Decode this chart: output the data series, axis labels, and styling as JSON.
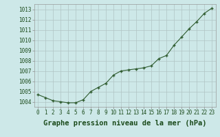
{
  "x": [
    0,
    1,
    2,
    3,
    4,
    5,
    6,
    7,
    8,
    9,
    10,
    11,
    12,
    13,
    14,
    15,
    16,
    17,
    18,
    19,
    20,
    21,
    22,
    23
  ],
  "y": [
    1004.7,
    1004.4,
    1004.1,
    1004.0,
    1003.9,
    1003.9,
    1004.2,
    1005.0,
    1005.4,
    1005.8,
    1006.6,
    1007.0,
    1007.1,
    1007.2,
    1007.3,
    1007.5,
    1008.2,
    1008.5,
    1009.5,
    1010.3,
    1011.1,
    1011.8,
    1012.6,
    1013.1
  ],
  "line_color": "#2d5a2d",
  "marker": "+",
  "bg_color": "#cde8e8",
  "grid_color": "#b0c4c4",
  "xlabel": "Graphe pression niveau de la mer (hPa)",
  "xlabel_fontsize": 7.5,
  "ylabel_ticks": [
    1004,
    1005,
    1006,
    1007,
    1008,
    1009,
    1010,
    1011,
    1012,
    1013
  ],
  "ylim": [
    1003.5,
    1013.5
  ],
  "xlim": [
    -0.5,
    23.5
  ],
  "xticks": [
    0,
    1,
    2,
    3,
    4,
    5,
    6,
    7,
    8,
    9,
    10,
    11,
    12,
    13,
    14,
    15,
    16,
    17,
    18,
    19,
    20,
    21,
    22,
    23
  ],
  "tick_fontsize": 5.5,
  "label_color": "#1a4a1a"
}
